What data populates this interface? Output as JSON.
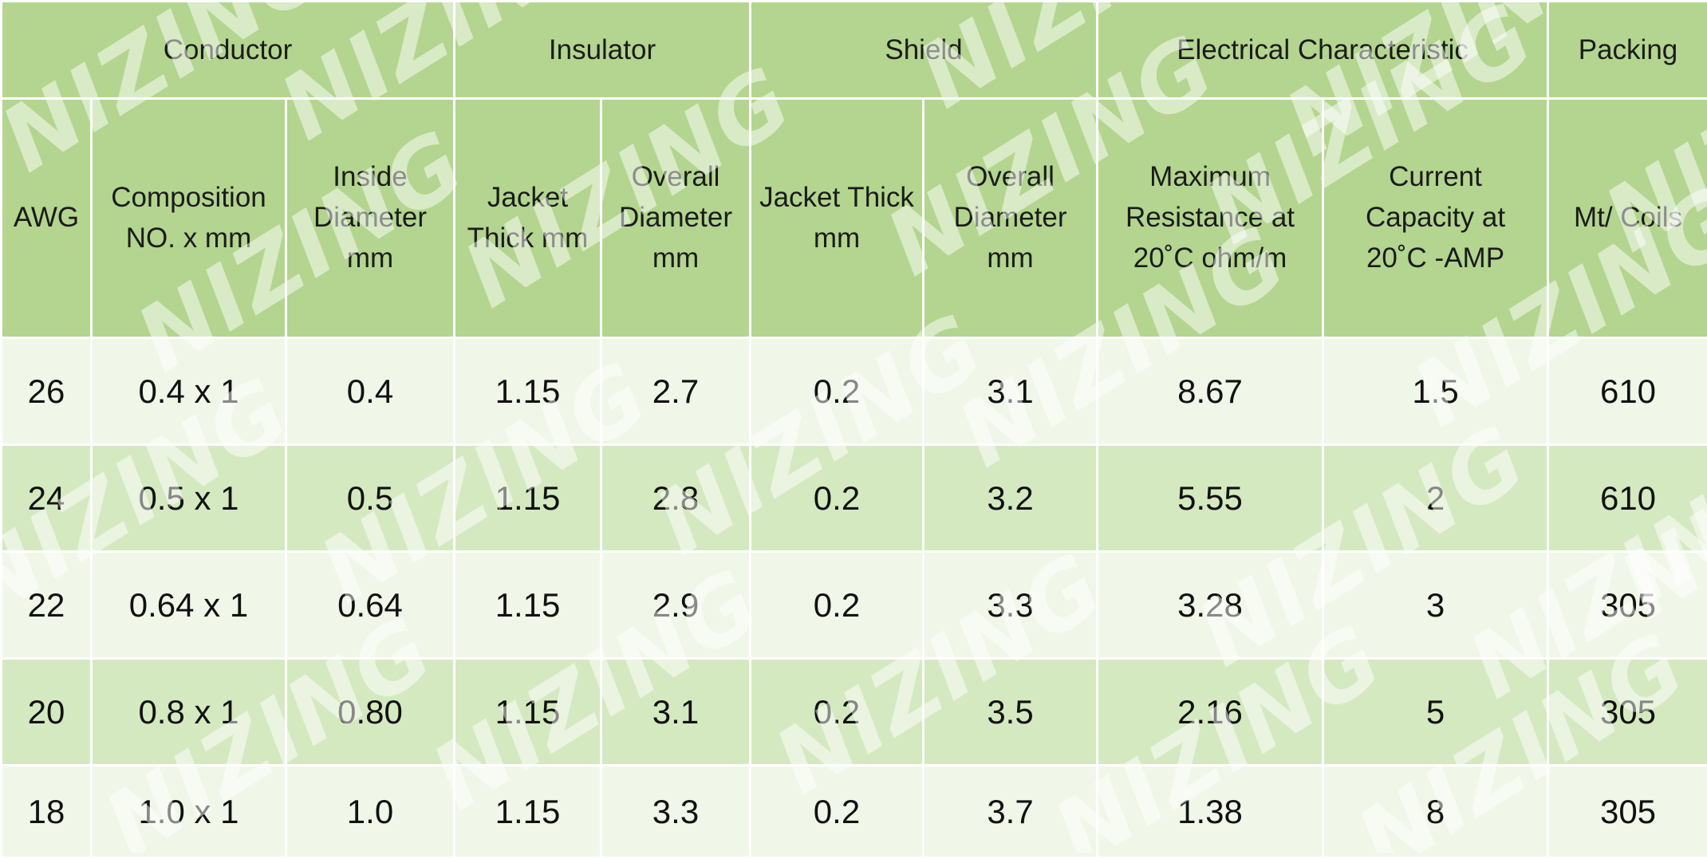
{
  "table": {
    "groups": [
      "Conductor",
      "Insulator",
      "Shield",
      "Electrical Characteristic",
      "Packing"
    ],
    "columns": [
      [
        "AWG"
      ],
      [
        "Composition",
        "NO. x mm"
      ],
      [
        "Inside",
        "Diameter",
        "mm"
      ],
      [
        "Jacket",
        "Thick mm"
      ],
      [
        "Overall",
        "Diameter",
        "mm"
      ],
      [
        "Jacket Thick",
        "mm"
      ],
      [
        "Overall",
        "Diameter",
        "mm"
      ],
      [
        "Maximum",
        "Resistance at",
        "20˚C ohm/m"
      ],
      [
        "Current",
        "Capacity at",
        "20˚C -AMP"
      ],
      [
        "Mt/ Coils"
      ]
    ],
    "rows": [
      [
        "26",
        "0.4 x 1",
        "0.4",
        "1.15",
        "2.7",
        "0.2",
        "3.1",
        "8.67",
        "1.5",
        "610"
      ],
      [
        "24",
        "0.5 x 1",
        "0.5",
        "1.15",
        "2.8",
        "0.2",
        "3.2",
        "5.55",
        "2",
        "610"
      ],
      [
        "22",
        "0.64 x 1",
        "0.64",
        "1.15",
        "2.9",
        "0.2",
        "3.3",
        "3.28",
        "3",
        "305"
      ],
      [
        "20",
        "0.8 x 1",
        "0.80",
        "1.15",
        "3.1",
        "0.2",
        "3.5",
        "2.16",
        "5",
        "305"
      ],
      [
        "18",
        "1.0 x 1",
        "1.0",
        "1.15",
        "3.3",
        "0.2",
        "3.7",
        "1.38",
        "8",
        "305"
      ]
    ]
  },
  "watermark": "NIZING",
  "colors": {
    "header_bg": "#b3d58f",
    "row_light": "#f0f7e9",
    "row_dark": "#d4e9c0",
    "grid_line": "#ffffff"
  }
}
